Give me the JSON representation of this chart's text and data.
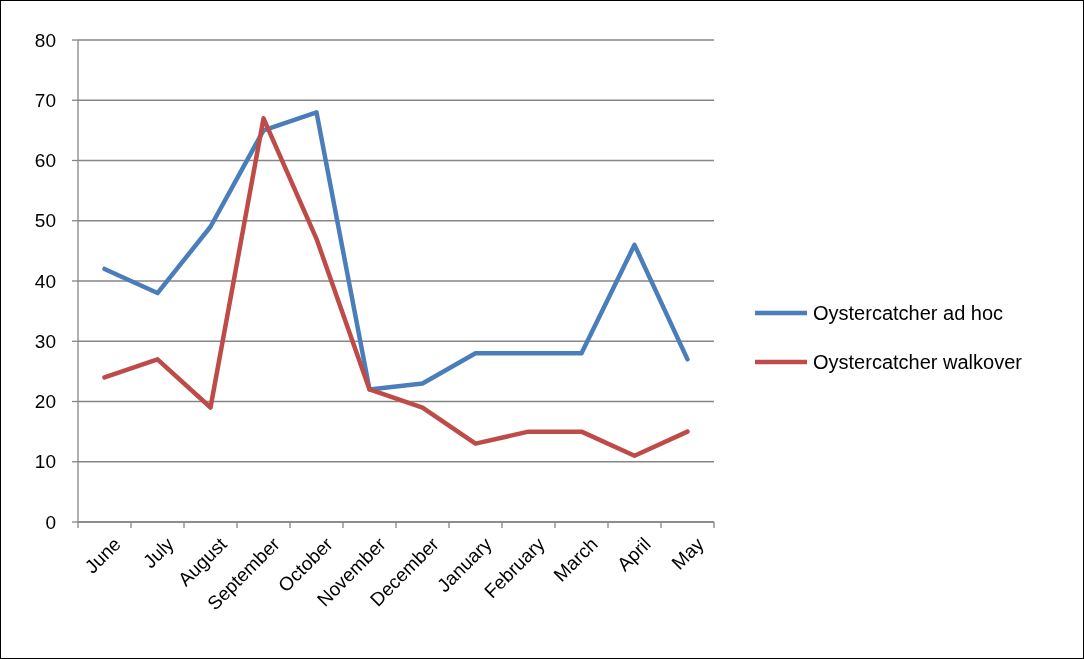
{
  "chart_data": {
    "type": "line",
    "categories": [
      "June",
      "July",
      "August",
      "September",
      "October",
      "November",
      "December",
      "January",
      "February",
      "March",
      "April",
      "May"
    ],
    "series": [
      {
        "name": "Oystercatcher ad hoc",
        "color": "#4a7ebb",
        "values": [
          42,
          38,
          49,
          65,
          68,
          22,
          23,
          28,
          28,
          28,
          46,
          27
        ]
      },
      {
        "name": "Oystercatcher walkover",
        "color": "#be4b48",
        "values": [
          24,
          27,
          19,
          67,
          47,
          22,
          19,
          13,
          15,
          15,
          11,
          15
        ]
      }
    ],
    "ylim": [
      0,
      80
    ],
    "yticks": [
      0,
      10,
      20,
      30,
      40,
      50,
      60,
      70,
      80
    ],
    "grid": "y",
    "legend": "right",
    "marker": "none",
    "line_style": "solid"
  }
}
